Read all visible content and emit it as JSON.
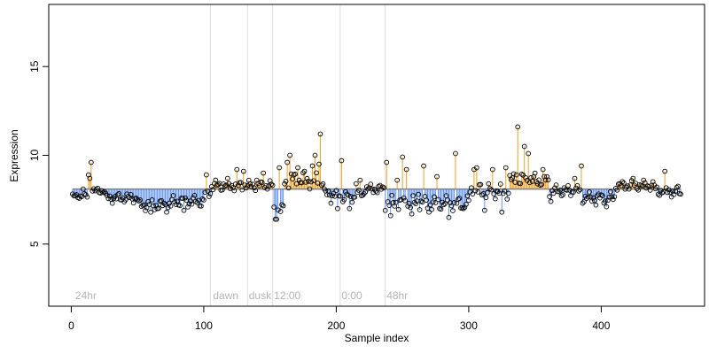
{
  "chart_data": {
    "type": "scatter",
    "title": "",
    "xlabel": "Sample index",
    "ylabel": "Expression",
    "xlim": [
      -17,
      478
    ],
    "ylim": [
      1.5,
      18.5
    ],
    "x_ticks": [
      0,
      100,
      200,
      300,
      400
    ],
    "y_ticks": [
      5,
      10,
      15
    ],
    "baseline": 8.1,
    "grid": false,
    "legend": "none",
    "colors": {
      "above_baseline": "#f0a020",
      "below_baseline": "#6495ed",
      "point_edge": "#000000",
      "phase_line": "#dcdcdc",
      "phase_label": "#b4b4b4"
    },
    "phase_lines": [
      105,
      133,
      152,
      203,
      237
    ],
    "phase_labels": [
      {
        "x": 3,
        "text": "24hr"
      },
      {
        "x": 107,
        "text": "dawn"
      },
      {
        "x": 134,
        "text": "dusk"
      },
      {
        "x": 153,
        "text": "12:00"
      },
      {
        "x": 204,
        "text": "0:00"
      },
      {
        "x": 238,
        "text": "48hr"
      }
    ],
    "segments": [
      {
        "start": 1,
        "end": 12,
        "level": 7.7,
        "amp": 0.15,
        "spikes": [
          [
            9,
            8.1
          ]
        ]
      },
      {
        "start": 13,
        "end": 25,
        "level": 8.0,
        "amp": 0.2,
        "spikes": [
          [
            13,
            8.9
          ],
          [
            14,
            8.7
          ],
          [
            15,
            9.6
          ]
        ]
      },
      {
        "start": 26,
        "end": 50,
        "level": 7.6,
        "amp": 0.3,
        "spikes": []
      },
      {
        "start": 51,
        "end": 75,
        "level": 7.2,
        "amp": 0.35,
        "spikes": [
          [
            60,
            6.8
          ],
          [
            65,
            7.0
          ],
          [
            72,
            6.8
          ]
        ]
      },
      {
        "start": 76,
        "end": 100,
        "level": 7.4,
        "amp": 0.35,
        "spikes": [
          [
            85,
            6.9
          ],
          [
            92,
            7.6
          ]
        ]
      },
      {
        "start": 101,
        "end": 105,
        "level": 7.9,
        "amp": 0.3,
        "spikes": [
          [
            102,
            8.9
          ]
        ]
      },
      {
        "start": 106,
        "end": 133,
        "level": 8.3,
        "amp": 0.35,
        "spikes": [
          [
            118,
            8.7
          ],
          [
            125,
            9.2
          ],
          [
            130,
            9.1
          ]
        ]
      },
      {
        "start": 134,
        "end": 152,
        "level": 8.3,
        "amp": 0.3,
        "spikes": [
          [
            140,
            8.6
          ],
          [
            145,
            9.0
          ]
        ]
      },
      {
        "start": 153,
        "end": 160,
        "level": 6.9,
        "amp": 0.4,
        "spikes": [
          [
            154,
            6.4
          ],
          [
            155,
            6.4
          ],
          [
            157,
            9.3
          ]
        ]
      },
      {
        "start": 161,
        "end": 190,
        "level": 8.6,
        "amp": 0.5,
        "spikes": [
          [
            163,
            9.6
          ],
          [
            165,
            10.0
          ],
          [
            168,
            8.9
          ],
          [
            171,
            9.3
          ],
          [
            176,
            9.1
          ],
          [
            182,
            9.4
          ],
          [
            184,
            10.0
          ],
          [
            187,
            9.5
          ],
          [
            188,
            11.2
          ]
        ]
      },
      {
        "start": 191,
        "end": 203,
        "level": 7.8,
        "amp": 0.4,
        "spikes": [
          [
            196,
            7.3
          ],
          [
            201,
            7.0
          ]
        ]
      },
      {
        "start": 204,
        "end": 220,
        "level": 7.7,
        "amp": 0.4,
        "spikes": [
          [
            204,
            9.7
          ],
          [
            210,
            7.0
          ],
          [
            215,
            8.4
          ],
          [
            218,
            8.6
          ]
        ]
      },
      {
        "start": 221,
        "end": 236,
        "level": 8.1,
        "amp": 0.3,
        "spikes": []
      },
      {
        "start": 237,
        "end": 270,
        "level": 7.3,
        "amp": 0.45,
        "spikes": [
          [
            238,
            9.6
          ],
          [
            241,
            6.6
          ],
          [
            246,
            8.6
          ],
          [
            250,
            9.9
          ],
          [
            253,
            9.2
          ],
          [
            257,
            6.7
          ],
          [
            262,
            7.8
          ],
          [
            266,
            9.4
          ],
          [
            270,
            6.8
          ]
        ]
      },
      {
        "start": 271,
        "end": 300,
        "level": 7.3,
        "amp": 0.45,
        "spikes": [
          [
            276,
            8.8
          ],
          [
            285,
            6.5
          ],
          [
            290,
            10.1
          ],
          [
            296,
            7.0
          ]
        ]
      },
      {
        "start": 301,
        "end": 330,
        "level": 8.0,
        "amp": 0.5,
        "spikes": [
          [
            304,
            9.2
          ],
          [
            306,
            9.3
          ],
          [
            312,
            6.9
          ],
          [
            318,
            9.2
          ],
          [
            325,
            6.8
          ],
          [
            328,
            9.3
          ]
        ]
      },
      {
        "start": 331,
        "end": 360,
        "level": 8.6,
        "amp": 0.45,
        "spikes": [
          [
            336,
            8.9
          ],
          [
            337,
            11.6
          ],
          [
            342,
            10.5
          ],
          [
            345,
            10.1
          ],
          [
            350,
            9.0
          ],
          [
            356,
            9.2
          ],
          [
            359,
            8.8
          ]
        ]
      },
      {
        "start": 361,
        "end": 385,
        "level": 8.0,
        "amp": 0.35,
        "spikes": [
          [
            362,
            7.4
          ],
          [
            380,
            8.7
          ],
          [
            385,
            9.4
          ]
        ]
      },
      {
        "start": 386,
        "end": 410,
        "level": 7.6,
        "amp": 0.35,
        "spikes": [
          [
            396,
            7.2
          ],
          [
            404,
            7.1
          ]
        ]
      },
      {
        "start": 411,
        "end": 440,
        "level": 8.3,
        "amp": 0.3,
        "spikes": [
          [
            424,
            8.7
          ],
          [
            432,
            8.6
          ]
        ]
      },
      {
        "start": 441,
        "end": 460,
        "level": 8.0,
        "amp": 0.35,
        "spikes": [
          [
            448,
            9.1
          ],
          [
            455,
            7.8
          ]
        ]
      }
    ]
  }
}
